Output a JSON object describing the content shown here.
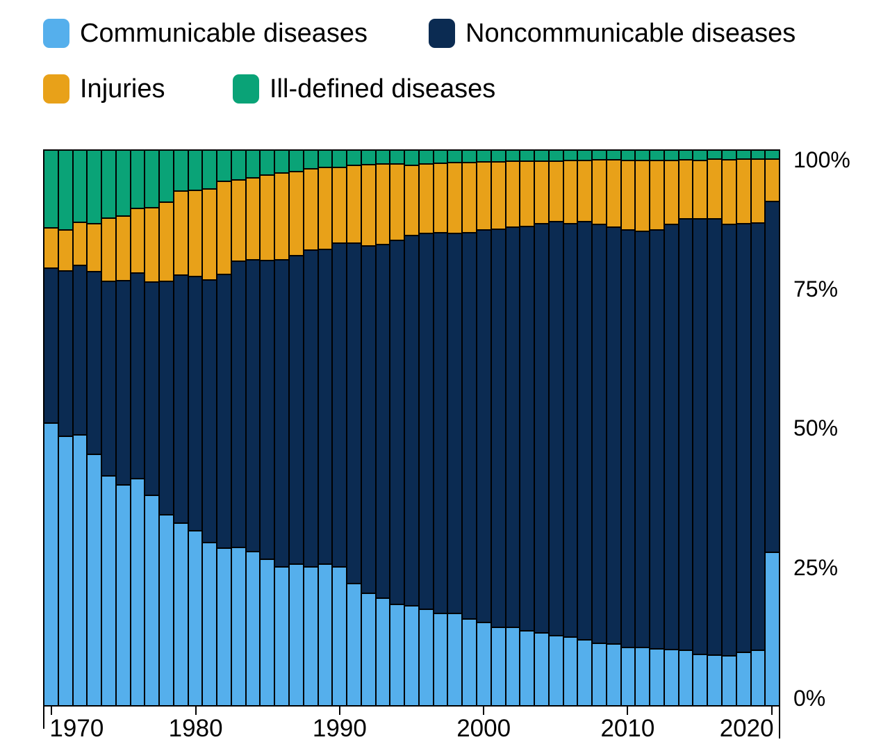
{
  "legend": {
    "items": [
      {
        "label": "Communicable diseases",
        "color": "#55afec"
      },
      {
        "label": "Noncommunicable diseases",
        "color": "#0b2b52"
      },
      {
        "label": "Injuries",
        "color": "#e8a119"
      },
      {
        "label": "Ill-defined diseases",
        "color": "#0aa377"
      }
    ]
  },
  "chart_data": {
    "type": "bar",
    "stacked": true,
    "unit": "%",
    "grid": false,
    "legend_position": "top",
    "ylim": [
      0,
      100
    ],
    "x": [
      1970,
      1971,
      1972,
      1973,
      1974,
      1975,
      1976,
      1977,
      1978,
      1979,
      1980,
      1981,
      1982,
      1983,
      1984,
      1985,
      1986,
      1987,
      1988,
      1989,
      1990,
      1991,
      1992,
      1993,
      1994,
      1995,
      1996,
      1997,
      1998,
      1999,
      2000,
      2001,
      2002,
      2003,
      2004,
      2005,
      2006,
      2007,
      2008,
      2009,
      2010,
      2011,
      2012,
      2013,
      2014,
      2015,
      2016,
      2017,
      2018,
      2019,
      2020
    ],
    "series": [
      {
        "name": "Communicable diseases",
        "key": "communicable",
        "color": "#55afec",
        "values": [
          51.0,
          48.6,
          48.9,
          45.3,
          41.5,
          39.9,
          41.0,
          38.0,
          34.5,
          33.0,
          31.6,
          29.5,
          28.5,
          28.6,
          27.8,
          26.5,
          25.1,
          25.6,
          25.0,
          25.5,
          25.1,
          22.1,
          20.3,
          19.4,
          18.3,
          18.1,
          17.4,
          16.7,
          16.7,
          15.7,
          15.0,
          14.2,
          14.1,
          13.5,
          13.1,
          12.7,
          12.4,
          11.9,
          11.3,
          11.2,
          10.5,
          10.5,
          10.3,
          10.1,
          10.0,
          9.3,
          9.2,
          9.0,
          9.7,
          10.0,
          27.7
        ]
      },
      {
        "name": "Noncommunicable diseases",
        "key": "noncommunicable",
        "color": "#0b2b52",
        "values": [
          27.9,
          29.8,
          30.5,
          33.0,
          35.1,
          36.8,
          37.1,
          38.4,
          42.1,
          44.7,
          45.8,
          47.3,
          49.3,
          51.6,
          52.6,
          53.8,
          55.3,
          55.6,
          57.2,
          56.8,
          58.3,
          61.3,
          62.6,
          63.8,
          65.6,
          66.7,
          67.8,
          68.7,
          68.5,
          69.7,
          70.9,
          71.8,
          72.3,
          73.0,
          73.9,
          74.6,
          74.6,
          75.5,
          75.5,
          75.1,
          75.4,
          75.1,
          75.6,
          76.7,
          77.9,
          78.6,
          78.6,
          77.9,
          77.3,
          77.1,
          63.3
        ]
      },
      {
        "name": "Injuries",
        "key": "injuries",
        "color": "#e8a119",
        "values": [
          7.3,
          7.5,
          7.8,
          8.7,
          11.4,
          11.6,
          11.6,
          13.5,
          14.2,
          15.2,
          15.6,
          16.4,
          16.8,
          14.6,
          14.8,
          15.5,
          15.7,
          15.2,
          14.7,
          14.8,
          13.7,
          14.1,
          14.7,
          14.5,
          13.8,
          12.7,
          12.5,
          12.5,
          12.8,
          12.6,
          12.2,
          12.1,
          11.8,
          11.7,
          11.3,
          11.0,
          11.4,
          11.0,
          11.7,
          12.2,
          12.5,
          12.8,
          12.5,
          11.6,
          10.6,
          10.5,
          10.8,
          11.6,
          11.6,
          11.5,
          7.6
        ]
      },
      {
        "name": "Ill-defined diseases",
        "key": "ill-defined",
        "color": "#0aa377",
        "values": [
          13.8,
          14.1,
          12.8,
          13.0,
          12.0,
          11.7,
          10.3,
          10.1,
          9.2,
          7.1,
          7.0,
          6.8,
          5.4,
          5.2,
          4.8,
          4.2,
          3.9,
          3.6,
          3.1,
          2.9,
          2.9,
          2.5,
          2.4,
          2.3,
          2.3,
          2.5,
          2.3,
          2.1,
          2.0,
          2.0,
          1.9,
          1.9,
          1.8,
          1.8,
          1.7,
          1.7,
          1.6,
          1.6,
          1.5,
          1.5,
          1.6,
          1.6,
          1.6,
          1.6,
          1.5,
          1.6,
          1.4,
          1.5,
          1.4,
          1.4,
          1.4
        ]
      }
    ],
    "xticks": [
      1970,
      1980,
      1990,
      2000,
      2010,
      2020
    ],
    "yticks": [
      {
        "value": 0,
        "label": "0%"
      },
      {
        "value": 25,
        "label": "25%"
      },
      {
        "value": 50,
        "label": "50%"
      },
      {
        "value": 75,
        "label": "75%"
      },
      {
        "value": 100,
        "label": "100%"
      }
    ]
  }
}
